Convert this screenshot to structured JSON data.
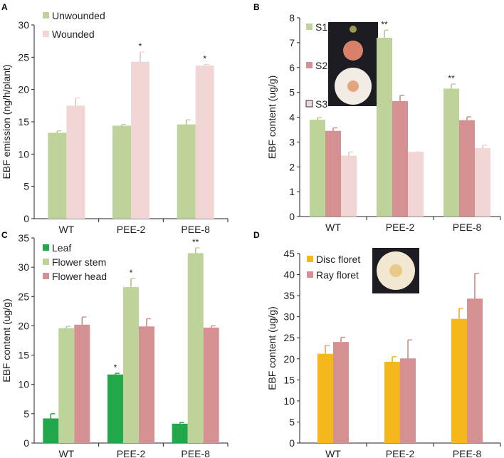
{
  "chart_data": [
    {
      "panel": "A",
      "type": "bar",
      "categories": [
        "WT",
        "PEE-2",
        "PEE-8"
      ],
      "ylabel": "EBF emission  (ng/h/plant)",
      "ylim": [
        0,
        30
      ],
      "yticks": [
        0,
        5,
        10,
        15,
        20,
        25,
        30
      ],
      "series": [
        {
          "name": "Unwounded",
          "color": "#bed39a",
          "values": [
            13.3,
            14.4,
            14.6
          ],
          "errors": [
            0.3,
            0.2,
            0.7
          ],
          "sig": [
            "",
            "",
            ""
          ]
        },
        {
          "name": "Wounded",
          "color": "#f2d6d6",
          "values": [
            17.5,
            24.3,
            23.7
          ],
          "errors": [
            1.2,
            1.5,
            0.2
          ],
          "sig": [
            "",
            "*",
            "*"
          ]
        }
      ]
    },
    {
      "panel": "B",
      "type": "bar",
      "categories": [
        "WT",
        "PEE-2",
        "PEE-8"
      ],
      "ylabel": "EBF content (ug/g)",
      "ylim": [
        0,
        8
      ],
      "yticks": [
        0,
        1,
        2,
        3,
        4,
        5,
        6,
        7,
        8
      ],
      "series": [
        {
          "name": "S1",
          "color": "#bed39a",
          "values": [
            3.9,
            7.2,
            5.15
          ],
          "errors": [
            0.08,
            0.3,
            0.18
          ],
          "sig": [
            "",
            "**",
            "**"
          ]
        },
        {
          "name": "S2",
          "color": "#d59192",
          "values": [
            3.45,
            4.65,
            3.88
          ],
          "errors": [
            0.12,
            0.22,
            0.13
          ],
          "sig": [
            "",
            "",
            ""
          ]
        },
        {
          "name": "S3",
          "color": "#f2d6d6",
          "values": [
            2.45,
            2.6,
            2.75
          ],
          "errors": [
            0.15,
            0.0,
            0.12
          ],
          "sig": [
            "",
            "",
            ""
          ]
        }
      ]
    },
    {
      "panel": "C",
      "type": "bar",
      "categories": [
        "WT",
        "PEE-2",
        "PEE-8"
      ],
      "ylabel": "EBF content (ug/g)",
      "ylim": [
        0,
        35
      ],
      "yticks": [
        0,
        5,
        10,
        15,
        20,
        25,
        30,
        35
      ],
      "series": [
        {
          "name": "Leaf",
          "color": "#22a84a",
          "values": [
            4.2,
            11.7,
            3.3
          ],
          "errors": [
            0.8,
            0.2,
            0.2
          ],
          "sig": [
            "",
            "*",
            ""
          ]
        },
        {
          "name": "Flower stem",
          "color": "#bed39a",
          "values": [
            19.6,
            26.6,
            32.4
          ],
          "errors": [
            0.3,
            1.5,
            0.9
          ],
          "sig": [
            "",
            "*",
            "**"
          ]
        },
        {
          "name": "Flower head",
          "color": "#d59192",
          "values": [
            20.2,
            19.9,
            19.7
          ],
          "errors": [
            1.3,
            1.3,
            0.3
          ],
          "sig": [
            "",
            "",
            ""
          ]
        }
      ]
    },
    {
      "panel": "D",
      "type": "bar",
      "categories": [
        "WT",
        "PEE-2",
        "PEE-8"
      ],
      "ylabel": "EBF content (ug/g)",
      "ylim": [
        0,
        45
      ],
      "yticks": [
        0,
        5,
        10,
        15,
        20,
        25,
        30,
        35,
        40,
        45
      ],
      "series": [
        {
          "name": "Disc floret",
          "color": "#f5b81c",
          "values": [
            21.2,
            19.3,
            29.5
          ],
          "errors": [
            2.0,
            1.2,
            2.5
          ],
          "sig": [
            "",
            "",
            ""
          ]
        },
        {
          "name": "Ray floret",
          "color": "#d59192",
          "values": [
            24.0,
            20.1,
            34.3
          ],
          "errors": [
            1.1,
            4.4,
            6.0
          ],
          "sig": [
            "",
            "",
            ""
          ]
        }
      ]
    }
  ]
}
